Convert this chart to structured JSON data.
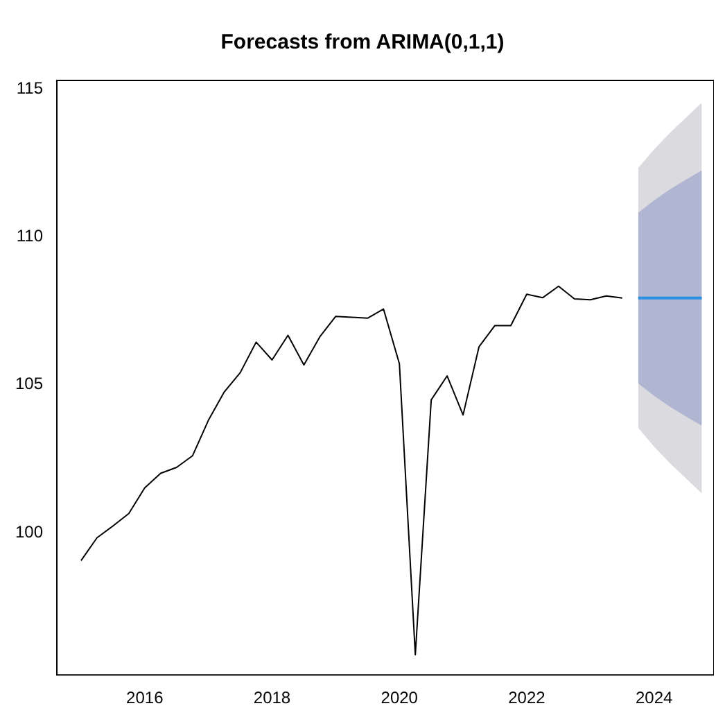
{
  "chart_data": {
    "type": "line",
    "title": "Forecasts from ARIMA(0,1,1)",
    "xlim": [
      2014.62,
      2024.94
    ],
    "xticks": [
      2016,
      2018,
      2020,
      2022,
      2024
    ],
    "ylim": [
      95.2,
      115.28
    ],
    "yticks": [
      100,
      105,
      110,
      115
    ],
    "grid": false,
    "legend": false,
    "marker": "none",
    "line_style": "solid",
    "series": [
      {
        "color": "#dbdbdf",
        "x": [
          2023.75,
          2024.0,
          2024.25,
          2024.5,
          2024.75
        ],
        "values": [
          null,
          null,
          null,
          null,
          null
        ],
        "lower": [
          103.55,
          102.91,
          102.35,
          101.84,
          101.33
        ],
        "upper": [
          112.32,
          112.95,
          113.51,
          114.02,
          114.53
        ]
      },
      {
        "color": "#b0b5d1",
        "x": [
          2023.75,
          2024.0,
          2024.25,
          2024.5,
          2024.75
        ],
        "values": [
          null,
          null,
          null,
          null,
          null
        ],
        "lower": [
          105.05,
          104.63,
          104.26,
          103.93,
          103.62
        ],
        "upper": [
          110.81,
          111.23,
          111.6,
          111.93,
          112.24
        ]
      },
      {
        "color": "#000000",
        "x": [
          2015.0,
          2015.25,
          2015.5,
          2015.75,
          2016.0,
          2016.25,
          2016.5,
          2016.75,
          2017.0,
          2017.25,
          2017.5,
          2017.75,
          2018.0,
          2018.25,
          2018.5,
          2018.75,
          2019.0,
          2019.25,
          2019.5,
          2019.75,
          2020.0,
          2020.25,
          2020.5,
          2020.75,
          2021.0,
          2021.25,
          2021.5,
          2021.75,
          2022.0,
          2022.25,
          2022.5,
          2022.75,
          2023.0,
          2023.25,
          2023.5
        ],
        "values": [
          99.06,
          99.83,
          100.23,
          100.65,
          101.52,
          102.01,
          102.21,
          102.6,
          103.8,
          104.76,
          105.41,
          106.44,
          105.84,
          106.67,
          105.67,
          106.62,
          107.31,
          107.28,
          107.25,
          107.56,
          105.71,
          95.88,
          104.49,
          105.3,
          103.98,
          106.28,
          107.0,
          107.0,
          108.06,
          107.94,
          108.33,
          107.9,
          107.87,
          108.0,
          107.93
        ]
      },
      {
        "color": "#2b8fe0",
        "x": [
          2023.75,
          2024.0,
          2024.25,
          2024.5,
          2024.75
        ],
        "values": [
          107.93,
          107.93,
          107.93,
          107.93,
          107.93
        ]
      }
    ]
  }
}
